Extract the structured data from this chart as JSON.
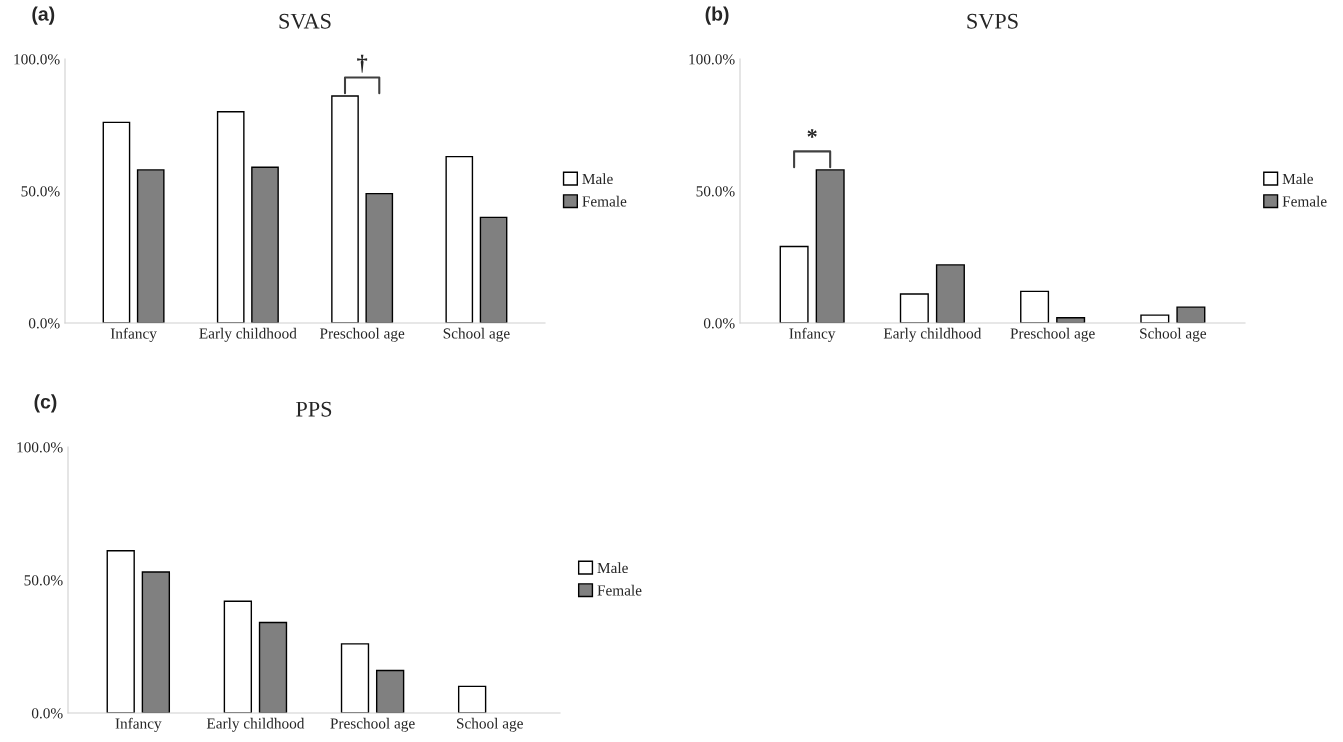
{
  "chart_data": [
    {
      "type": "bar",
      "title": "SVAS",
      "categories": [
        "Infancy",
        "Early childhood",
        "Preschool age",
        "School age"
      ],
      "series": [
        {
          "name": "Male",
          "color": "#ffffff",
          "values": [
            76,
            80,
            86,
            63
          ]
        },
        {
          "name": "Female",
          "color": "#808080",
          "values": [
            58,
            59,
            49,
            40
          ]
        }
      ],
      "ylim": [
        0,
        100
      ],
      "yticks": [
        {
          "value": 0,
          "label": "0.0%"
        },
        {
          "value": 50,
          "label": "50.0%"
        },
        {
          "value": 100,
          "label": "100.0%"
        }
      ],
      "legend": "right",
      "annotations": [
        "(a)",
        "†"
      ]
    },
    {
      "type": "bar",
      "title": "SVPS",
      "categories": [
        "Infancy",
        "Early childhood",
        "Preschool age",
        "School age"
      ],
      "series": [
        {
          "name": "Male",
          "color": "#ffffff",
          "values": [
            29,
            11,
            12,
            3
          ]
        },
        {
          "name": "Female",
          "color": "#808080",
          "values": [
            58,
            22,
            2,
            6
          ]
        }
      ],
      "ylim": [
        0,
        100
      ],
      "yticks": [
        {
          "value": 0,
          "label": "0.0%"
        },
        {
          "value": 50,
          "label": "50.0%"
        },
        {
          "value": 100,
          "label": "100.0%"
        }
      ],
      "legend": "right",
      "annotations": [
        "(b)",
        "*"
      ]
    },
    {
      "type": "bar",
      "title": "PPS",
      "categories": [
        "Infancy",
        "Early childhood",
        "Preschool age",
        "School age"
      ],
      "series": [
        {
          "name": "Male",
          "color": "#ffffff",
          "values": [
            61,
            42,
            26,
            10
          ]
        },
        {
          "name": "Female",
          "color": "#808080",
          "values": [
            53,
            34,
            16,
            null
          ]
        }
      ],
      "ylim": [
        0,
        100
      ],
      "yticks": [
        {
          "value": 0,
          "label": "0.0%"
        },
        {
          "value": 50,
          "label": "50.0%"
        },
        {
          "value": 100,
          "label": "100.0%"
        }
      ],
      "legend": "right",
      "annotations": [
        "(c)"
      ]
    }
  ]
}
